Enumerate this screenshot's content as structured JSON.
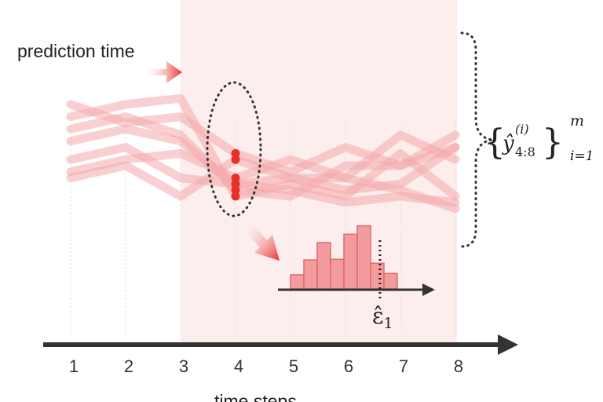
{
  "labels": {
    "prediction_time": "prediction time",
    "x_axis": "time steps"
  },
  "x_ticks": [
    "1",
    "2",
    "3",
    "4",
    "5",
    "6",
    "7",
    "8"
  ],
  "math": {
    "set_y": "ŷ",
    "set_sup": "(i)",
    "set_sub": "4:8",
    "set_upper": "m",
    "set_lower": "i=1",
    "epsilon": "ε̂",
    "epsilon_sub": "1"
  },
  "colors": {
    "shade": "#fdeeee",
    "trajectory": "#f4a9ab",
    "marker": "#e8302b",
    "arrow": "#e8302b",
    "bar_fill": "#f39c9e",
    "bar_stroke": "#e06a6e",
    "axis": "#333333"
  },
  "chart_data": {
    "type": "line",
    "x": [
      1,
      2,
      3,
      4,
      5,
      6,
      7,
      8
    ],
    "history_end": 3,
    "prediction_start": 3,
    "trajectories": [
      [
        0.6,
        0.8,
        0.3,
        0.2,
        0.1,
        -0.1,
        0.0,
        -0.1
      ],
      [
        0.3,
        0.5,
        0.0,
        0.6,
        0.3,
        0.1,
        0.2,
        0.8
      ],
      [
        0.4,
        0.6,
        0.7,
        0.3,
        0.6,
        0.3,
        0.1,
        -0.2
      ],
      [
        0.9,
        1.1,
        0.9,
        0.2,
        0.3,
        0.3,
        1.0,
        0.6
      ],
      [
        1.1,
        1.3,
        1.0,
        0.1,
        0.0,
        0.5,
        0.5,
        0.8
      ],
      [
        1.3,
        1.5,
        1.6,
        0.0,
        0.2,
        0.0,
        0.7,
        0.0
      ],
      [
        1.5,
        1.2,
        1.3,
        0.7,
        0.4,
        0.8,
        0.5,
        1.0
      ]
    ]
  },
  "histogram": {
    "bin_heights": [
      0.22,
      0.45,
      0.72,
      0.46,
      0.85,
      0.98,
      0.4,
      0.24
    ],
    "quantile_bin": 6.7
  }
}
